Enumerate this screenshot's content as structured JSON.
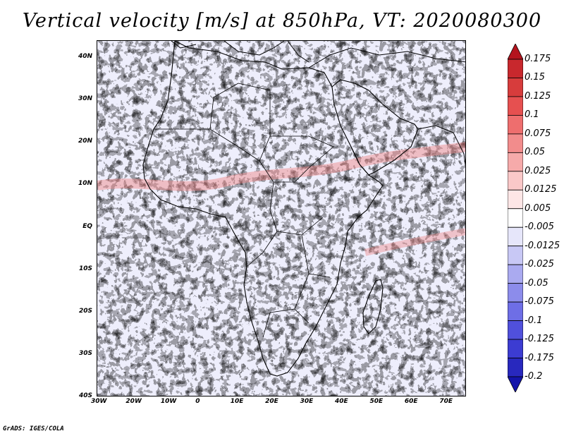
{
  "title": "Vertical velocity [m/s] at 850hPa, VT: 2020080300",
  "credit": "GrADS: IGES/COLA",
  "map": {
    "lon_range": [
      -30,
      76
    ],
    "lat_range": [
      -40,
      44
    ],
    "lon_ticks": [
      {
        "value": -30,
        "label": "30W"
      },
      {
        "value": -20,
        "label": "20W"
      },
      {
        "value": -10,
        "label": "10W"
      },
      {
        "value": 0,
        "label": "0"
      },
      {
        "value": 10,
        "label": "10E"
      },
      {
        "value": 20,
        "label": "20E"
      },
      {
        "value": 30,
        "label": "30E"
      },
      {
        "value": 40,
        "label": "40E"
      },
      {
        "value": 50,
        "label": "50E"
      },
      {
        "value": 60,
        "label": "60E"
      },
      {
        "value": 70,
        "label": "70E"
      }
    ],
    "lat_ticks": [
      {
        "value": 40,
        "label": "40N"
      },
      {
        "value": 30,
        "label": "30N"
      },
      {
        "value": 20,
        "label": "20N"
      },
      {
        "value": 10,
        "label": "10N"
      },
      {
        "value": 0,
        "label": "EQ"
      },
      {
        "value": -10,
        "label": "10S"
      },
      {
        "value": -20,
        "label": "20S"
      },
      {
        "value": -30,
        "label": "30S"
      },
      {
        "value": -40,
        "label": "40S"
      }
    ]
  },
  "colorbar": {
    "labels": [
      "0.175",
      "0.15",
      "0.125",
      "0.1",
      "0.075",
      "0.05",
      "0.025",
      "0.0125",
      "0.005",
      "-0.005",
      "-0.0125",
      "-0.025",
      "-0.05",
      "-0.075",
      "-0.1",
      "-0.125",
      "-0.175",
      "-0.2"
    ],
    "colors": [
      "#b4141e",
      "#c8282d",
      "#d73c3c",
      "#e65050",
      "#ee6e6e",
      "#f28c8c",
      "#f6aaaa",
      "#fac8c8",
      "#fde6e6",
      "#ffffff",
      "#e6e6fa",
      "#c8c8f5",
      "#aaaaf0",
      "#8c8ceb",
      "#6e6ee6",
      "#5050dc",
      "#3c3cd2",
      "#2828be",
      "#1414aa"
    ]
  }
}
